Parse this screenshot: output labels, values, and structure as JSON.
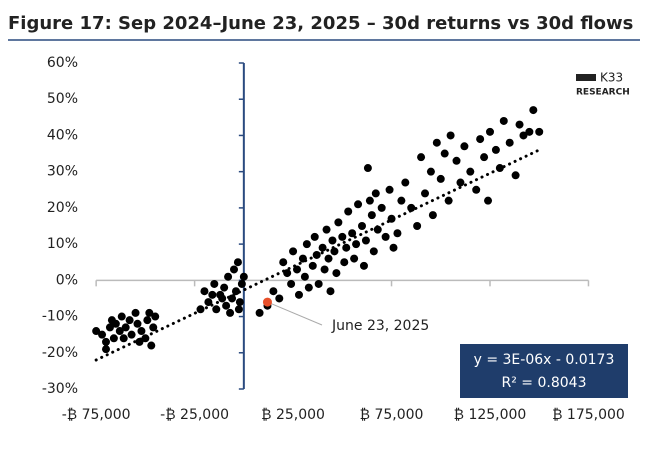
{
  "chart_data": {
    "type": "scatter",
    "title": "Figure 17: Sep 2024–June 23, 2025 – 30d returns vs 30d flows",
    "logo": [
      "K33",
      "RESEARCH"
    ],
    "xlim": [
      -80000,
      190000
    ],
    "ylim": [
      -30,
      60
    ],
    "xticks": [
      {
        "value": -75000,
        "label": "-₿ 75,000"
      },
      {
        "value": -25000,
        "label": "-₿ 25,000"
      },
      {
        "value": 25000,
        "label": "₿ 25,000"
      },
      {
        "value": 75000,
        "label": "₿ 75,000"
      },
      {
        "value": 125000,
        "label": "₿ 125,000"
      },
      {
        "value": 175000,
        "label": "₿ 175,000"
      }
    ],
    "yticks": [
      {
        "value": 60,
        "label": "60%"
      },
      {
        "value": 50,
        "label": "50%"
      },
      {
        "value": 40,
        "label": "40%"
      },
      {
        "value": 30,
        "label": "30%"
      },
      {
        "value": 20,
        "label": "20%"
      },
      {
        "value": 10,
        "label": "10%"
      },
      {
        "value": 0,
        "label": "0%"
      },
      {
        "value": -10,
        "label": "-10%"
      },
      {
        "value": -20,
        "label": "-20%"
      },
      {
        "value": -30,
        "label": "-30%"
      }
    ],
    "series": [
      {
        "color": "#000000",
        "x": [
          -75000,
          -72000,
          -70000,
          -68000,
          -66000,
          -65000,
          -63000,
          -62000,
          -60000,
          -58000,
          -57000,
          -55000,
          -54000,
          -52000,
          -50000,
          -49000,
          -47000,
          -46000,
          -45000,
          -48000,
          -70000,
          -67000,
          -61000,
          -53000,
          -20000,
          -18000,
          -15000,
          -14000,
          -12000,
          -10000,
          -9000,
          -8000,
          -6000,
          -5000,
          -4000,
          -3000,
          -2000,
          -1000,
          -22000,
          -16000,
          -7000,
          0,
          -11000,
          -2500,
          8000,
          12000,
          15000,
          18000,
          20000,
          22000,
          24000,
          25000,
          27000,
          28000,
          30000,
          31000,
          32000,
          33000,
          35000,
          36000,
          37000,
          38000,
          40000,
          41000,
          42000,
          43000,
          44000,
          45000,
          46000,
          47000,
          48000,
          50000,
          51000,
          52000,
          53000,
          55000,
          56000,
          57000,
          58000,
          60000,
          61000,
          62000,
          63000,
          64000,
          65000,
          66000,
          67000,
          68000,
          70000,
          72000,
          74000,
          75000,
          76000,
          78000,
          80000,
          82000,
          85000,
          88000,
          90000,
          92000,
          95000,
          96000,
          98000,
          100000,
          102000,
          104000,
          105000,
          108000,
          110000,
          112000,
          115000,
          118000,
          120000,
          122000,
          124000,
          125000,
          128000,
          130000,
          132000,
          135000,
          138000,
          140000,
          142000,
          145000,
          147000,
          150000
        ],
        "values": [
          -14,
          -15,
          -17,
          -13,
          -16,
          -12,
          -14,
          -10,
          -13,
          -11,
          -15,
          -9,
          -12,
          -14,
          -16,
          -11,
          -18,
          -13,
          -10,
          -9,
          -19,
          -11,
          -16,
          -17,
          -3,
          -6,
          -1,
          -8,
          -4,
          -2,
          -7,
          1,
          -5,
          3,
          -3,
          5,
          -6,
          -1,
          -8,
          -4,
          -9,
          1,
          -5,
          -8,
          -9,
          -7,
          -3,
          -5,
          5,
          2,
          -1,
          8,
          3,
          -4,
          6,
          1,
          10,
          -2,
          4,
          12,
          7,
          -1,
          9,
          3,
          14,
          6,
          -3,
          11,
          8,
          2,
          16,
          12,
          5,
          9,
          19,
          13,
          6,
          10,
          21,
          15,
          4,
          11,
          31,
          22,
          18,
          8,
          24,
          14,
          20,
          12,
          25,
          17,
          9,
          13,
          22,
          27,
          20,
          15,
          34,
          24,
          30,
          18,
          38,
          28,
          35,
          22,
          40,
          33,
          27,
          37,
          30,
          25,
          39,
          34,
          22,
          41,
          36,
          31,
          44,
          38,
          29,
          43,
          40,
          41,
          47,
          41
        ]
      }
    ],
    "trendline": {
      "x": [
        -75000,
        150000
      ],
      "values": [
        -22,
        36
      ]
    },
    "highlight": {
      "x": 12000,
      "y": -6,
      "label": "June 23, 2025",
      "color": "#e8502a"
    },
    "equation": [
      "y = 3E-06x - 0.0173",
      "R² = 0.8043"
    ]
  }
}
